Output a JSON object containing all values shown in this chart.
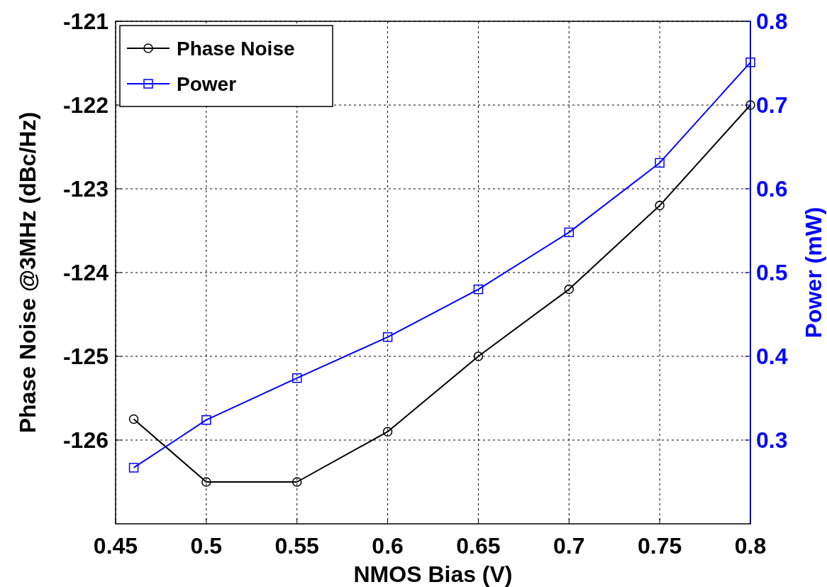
{
  "chart_data": {
    "type": "line",
    "xlabel": "NMOS Bias (V)",
    "ylabel": "Phase Noise @3MHz (dBc/Hz)",
    "y2label": "Power (mW)",
    "x": [
      0.46,
      0.5,
      0.55,
      0.6,
      0.65,
      0.7,
      0.75,
      0.8
    ],
    "xlim": [
      0.45,
      0.8
    ],
    "xticks": [
      0.45,
      0.5,
      0.55,
      0.6,
      0.65,
      0.7,
      0.75,
      0.8
    ],
    "ylim": [
      -127,
      -121
    ],
    "yticks": [
      -126,
      -125,
      -124,
      -123,
      -122,
      -121
    ],
    "y2lim": [
      0.2,
      0.8
    ],
    "y2ticks": [
      0.3,
      0.4,
      0.5,
      0.6,
      0.7,
      0.8
    ],
    "grid": true,
    "legend": "top left",
    "line_style": "solid",
    "series": [
      {
        "name": "Phase Noise",
        "color": "#000000",
        "marker": "circle",
        "values": [
          -125.75,
          -126.5,
          -126.5,
          -125.9,
          -125,
          -124.2,
          -123.2,
          -122
        ]
      },
      {
        "name": "Power",
        "color": "#0000ff",
        "marker": "square",
        "axis": "y2",
        "values": [
          0.267,
          0.324,
          0.374,
          0.423,
          0.48,
          0.548,
          0.631,
          0.751
        ]
      }
    ]
  }
}
